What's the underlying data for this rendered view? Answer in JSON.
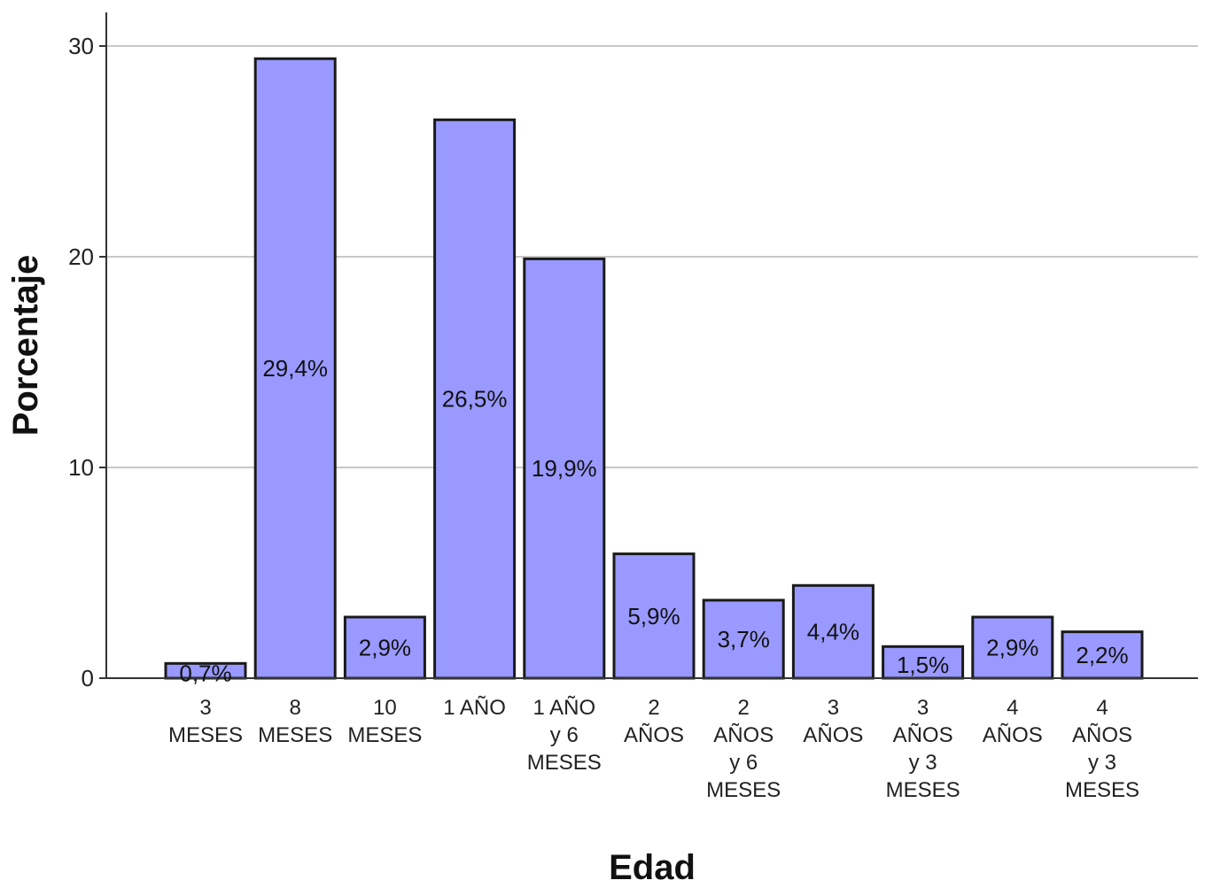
{
  "chart_data": {
    "type": "bar",
    "xlabel": "Edad",
    "ylabel": "Porcentaje",
    "ylim": [
      0,
      30
    ],
    "yticks": [
      "0",
      "10",
      "20",
      "30"
    ],
    "grid": true,
    "bar_color": "#9999ff",
    "bar_edge_color": "#1a1a1a",
    "categories": [
      [
        "3",
        "MESES"
      ],
      [
        "8",
        "MESES"
      ],
      [
        "10",
        "MESES"
      ],
      [
        "1 AÑO"
      ],
      [
        "1 AÑO",
        "y 6",
        "MESES"
      ],
      [
        "2",
        "AÑOS"
      ],
      [
        "2",
        "AÑOS",
        "y  6",
        "MESES"
      ],
      [
        "3",
        "AÑOS"
      ],
      [
        "3",
        "AÑOS",
        "y 3",
        "MESES"
      ],
      [
        "4",
        "AÑOS"
      ],
      [
        "4",
        "AÑOS",
        "y 3",
        "MESES"
      ]
    ],
    "values": [
      0.7,
      29.4,
      2.9,
      26.5,
      19.9,
      5.9,
      3.7,
      4.4,
      1.5,
      2.9,
      2.2
    ],
    "data_labels": [
      "0,7%",
      "29,4%",
      "2,9%",
      "26,5%",
      "19,9%",
      "5,9%",
      "3,7%",
      "4,4%",
      "1,5%",
      "2,9%",
      "2,2%"
    ]
  }
}
